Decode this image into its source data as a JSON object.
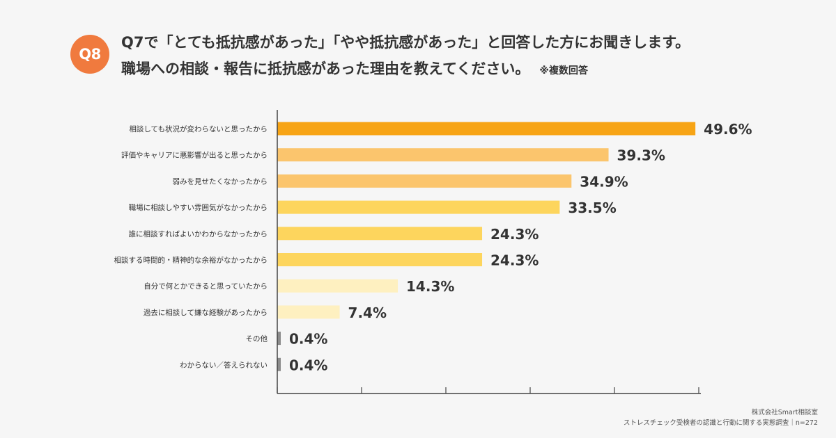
{
  "badge": "Q8",
  "title": {
    "line1": "Q7で「とても抵抗感があった」「やや抵抗感があった」と回答した方にお聞きします。",
    "line2": "職場への相談・報告に抵抗感があった理由を教えてください。",
    "note": "※複数回答"
  },
  "footer": {
    "company": "株式会社Smart相談室",
    "survey": "ストレスチェック受検者の認識と行動に関する実態調査｜n=272"
  },
  "colors": {
    "badge": "#f07a3e",
    "bar_top": "#f7a415",
    "bar_high": "#fbc56d",
    "bar_mid": "#fdd55d",
    "bar_low": "#fef0c0",
    "bar_minimal": "#8c8c8c",
    "axis": "#444444",
    "value_text": "#333333"
  },
  "chart_data": {
    "type": "bar",
    "orientation": "horizontal",
    "unit": "%",
    "xlim": [
      0,
      50
    ],
    "grid": false,
    "categories": [
      "相談しても状況が変わらないと思ったから",
      "評価やキャリアに悪影響が出ると思ったから",
      "弱みを見せたくなかったから",
      "職場に相談しやすい雰囲気がなかったから",
      "誰に相談すればよいかわからなかったから",
      "相談する時間的・精神的な余裕がなかったから",
      "自分で何とかできると思っていたから",
      "過去に相談して嫌な経験があったから",
      "その他",
      "わからない／答えられない"
    ],
    "values": [
      49.6,
      39.3,
      34.9,
      33.5,
      24.3,
      24.3,
      14.3,
      7.4,
      0.4,
      0.4
    ],
    "value_labels": [
      "49.6%",
      "39.3%",
      "34.9%",
      "33.5%",
      "24.3%",
      "24.3%",
      "14.3%",
      "7.4%",
      "0.4%",
      "0.4%"
    ],
    "bar_color_keys": [
      "bar_top",
      "bar_high",
      "bar_high",
      "bar_mid",
      "bar_mid",
      "bar_mid",
      "bar_low",
      "bar_low",
      "bar_minimal",
      "bar_minimal"
    ]
  }
}
